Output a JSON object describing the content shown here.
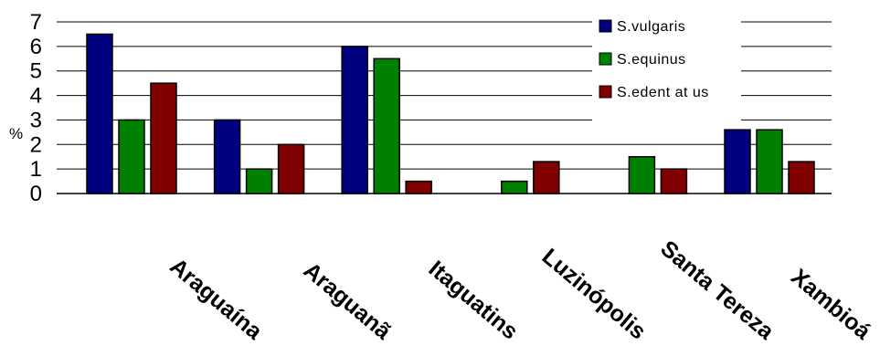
{
  "chart_data": {
    "type": "bar",
    "ylabel": "%",
    "ylim": [
      0,
      7
    ],
    "yticks": [
      "0",
      "1",
      "2",
      "3",
      "4",
      "5",
      "6",
      "7"
    ],
    "grid": true,
    "legend_position": "top-right",
    "categories": [
      "Araguaína",
      "Araguanã",
      "Itaguatins",
      "Luzinópolis",
      "Santa Tereza",
      "Xambioá"
    ],
    "series": [
      {
        "name": "S.vulgaris",
        "color": "#000080",
        "values": [
          6.5,
          3.0,
          6.0,
          0,
          0,
          2.6
        ]
      },
      {
        "name": "S.equinus",
        "color": "#008000",
        "values": [
          3.0,
          1.0,
          5.5,
          0.5,
          1.5,
          2.6
        ]
      },
      {
        "name": "S.edent at us",
        "color": "#800000",
        "values": [
          4.5,
          2.0,
          0.5,
          1.3,
          1.0,
          1.3
        ]
      }
    ]
  }
}
